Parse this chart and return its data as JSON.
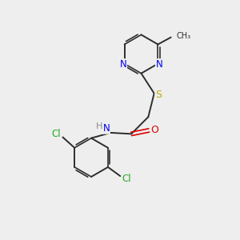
{
  "background_color": "#eeeeee",
  "bond_color": "#2d2d2d",
  "N_color": "#0000ee",
  "O_color": "#dd0000",
  "S_color": "#bbaa00",
  "Cl_color": "#22aa22",
  "C_color": "#2d2d2d",
  "H_color": "#888888",
  "figsize": [
    3.0,
    3.0
  ],
  "dpi": 100,
  "xlim": [
    0,
    10
  ],
  "ylim": [
    0,
    10
  ]
}
